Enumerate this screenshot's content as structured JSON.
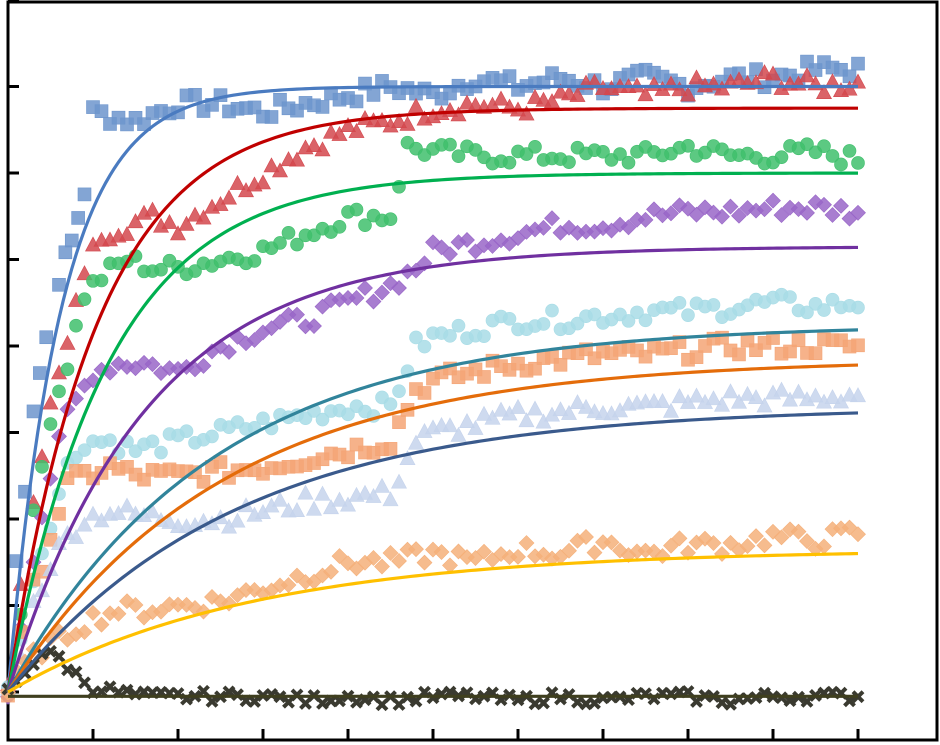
{
  "chart_data": {
    "type": "scatter",
    "title": "",
    "xlabel": "",
    "ylabel": "",
    "xlim": [
      0,
      11
    ],
    "ylim": [
      0,
      8
    ],
    "x_tick_step": 1,
    "y_tick_step": 1,
    "grid": false,
    "legend": "none",
    "series": [
      {
        "marker": "square",
        "color": "#6d95cc",
        "fit_color": "#4a7bc0",
        "plateau": 7.0,
        "k": 1.6,
        "fit_end": 7.0,
        "data_x": [
          0.0,
          0.1,
          0.2,
          0.3,
          0.45,
          0.6,
          0.75,
          0.9,
          1.0,
          1.5,
          2.0,
          2.5,
          3.0,
          3.5,
          4.0,
          4.5,
          5.0,
          5.5,
          6.0,
          6.5,
          7.0,
          7.5,
          8.0,
          8.5,
          9.0,
          9.5,
          10.0
        ],
        "data_y": [
          0.0,
          1.5,
          2.4,
          3.3,
          4.1,
          4.8,
          5.2,
          5.8,
          6.7,
          6.6,
          6.8,
          6.8,
          6.7,
          6.8,
          6.9,
          7.0,
          6.9,
          7.1,
          7.0,
          7.1,
          7.0,
          7.1,
          7.0,
          7.1,
          7.1,
          7.2,
          7.2
        ]
      },
      {
        "marker": "triangle",
        "color": "#d4484e",
        "fit_color": "#c00000",
        "plateau": 6.75,
        "k": 0.95,
        "fit_end": 6.75,
        "data_x": [
          0.0,
          0.15,
          0.3,
          0.5,
          0.7,
          0.9,
          1.1,
          1.4,
          1.7,
          2.0,
          2.5,
          3.0,
          3.5,
          4.0,
          4.5,
          5.0,
          5.5,
          6.0,
          6.5,
          7.0,
          7.5,
          8.0,
          8.5,
          9.0,
          9.5,
          10.0
        ],
        "data_y": [
          0.0,
          1.3,
          2.3,
          3.3,
          4.0,
          4.9,
          5.3,
          5.4,
          5.5,
          5.4,
          5.7,
          6.0,
          6.3,
          6.5,
          6.6,
          6.75,
          6.8,
          6.75,
          6.85,
          7.0,
          6.9,
          7.0,
          7.0,
          7.1,
          7.0,
          7.05
        ]
      },
      {
        "marker": "circle",
        "color": "#3fbf6c",
        "fit_color": "#00b050",
        "plateau": 6.0,
        "k": 0.85,
        "fit_end": 6.0,
        "data_x": [
          0.0,
          0.15,
          0.3,
          0.5,
          0.7,
          0.9,
          1.1,
          1.4,
          1.7,
          2.0,
          2.5,
          3.0,
          3.5,
          4.0,
          4.5,
          4.7,
          5.0,
          5.5,
          6.0,
          6.5,
          7.0,
          7.5,
          8.0,
          8.5,
          9.0,
          9.5,
          10.0
        ],
        "data_y": [
          0.0,
          1.0,
          2.0,
          3.2,
          3.8,
          4.6,
          4.8,
          5.0,
          4.9,
          4.9,
          5.0,
          5.1,
          5.3,
          5.5,
          5.5,
          6.3,
          6.25,
          6.2,
          6.2,
          6.2,
          6.2,
          6.2,
          6.3,
          6.2,
          6.2,
          6.25,
          6.15
        ]
      },
      {
        "marker": "diamond",
        "color": "#9966c8",
        "fit_color": "#7030a0",
        "plateau": 5.15,
        "k": 0.62,
        "fit_end": 5.15,
        "data_x": [
          0.0,
          0.15,
          0.3,
          0.5,
          0.7,
          1.0,
          1.3,
          1.6,
          2.0,
          2.5,
          3.0,
          3.5,
          4.0,
          4.5,
          4.8,
          5.0,
          5.5,
          6.0,
          6.5,
          7.0,
          7.5,
          8.0,
          8.5,
          9.0,
          9.5,
          10.0
        ],
        "data_y": [
          0.0,
          0.8,
          1.6,
          2.5,
          3.2,
          3.7,
          3.8,
          3.8,
          3.7,
          4.0,
          4.2,
          4.3,
          4.5,
          4.7,
          4.9,
          5.1,
          5.2,
          5.3,
          5.4,
          5.4,
          5.5,
          5.55,
          5.55,
          5.6,
          5.6,
          5.55
        ]
      },
      {
        "marker": "circle",
        "color": "#a8dce6",
        "fit_color": "#31849b",
        "plateau": 4.25,
        "k": 0.42,
        "fit_end": 4.25,
        "data_x": [
          0.0,
          0.15,
          0.3,
          0.5,
          0.7,
          0.9,
          1.2,
          1.5,
          2.0,
          2.5,
          3.0,
          3.5,
          4.0,
          4.5,
          4.8,
          5.0,
          5.5,
          6.0,
          6.5,
          7.0,
          7.5,
          8.0,
          8.5,
          9.0,
          9.5,
          10.0
        ],
        "data_y": [
          0.0,
          0.7,
          1.3,
          2.0,
          2.6,
          2.9,
          2.9,
          2.8,
          2.9,
          3.0,
          3.1,
          3.2,
          3.3,
          3.3,
          4.0,
          4.1,
          4.2,
          4.3,
          4.3,
          4.35,
          4.4,
          4.4,
          4.45,
          4.5,
          4.45,
          4.5
        ]
      },
      {
        "marker": "square",
        "color": "#f4a576",
        "fit_color": "#e46c0a",
        "plateau": 3.85,
        "k": 0.4,
        "fit_end": 3.85,
        "data_x": [
          0.0,
          0.15,
          0.3,
          0.5,
          0.7,
          0.9,
          1.2,
          1.5,
          2.0,
          2.5,
          3.0,
          3.5,
          4.0,
          4.5,
          4.8,
          5.0,
          5.5,
          6.0,
          6.5,
          7.0,
          7.5,
          8.0,
          8.5,
          9.0,
          9.5,
          10.0
        ],
        "data_y": [
          0.0,
          0.6,
          1.2,
          1.8,
          2.4,
          2.5,
          2.6,
          2.5,
          2.5,
          2.55,
          2.6,
          2.7,
          2.8,
          2.9,
          3.5,
          3.6,
          3.7,
          3.8,
          3.85,
          3.9,
          3.9,
          3.95,
          4.0,
          4.0,
          4.0,
          4.0
        ]
      },
      {
        "marker": "triangle",
        "color": "#c5d3ec",
        "fit_color": "#3a5a8c",
        "plateau": 3.3,
        "k": 0.38,
        "fit_end": 3.3,
        "data_x": [
          0.0,
          0.15,
          0.3,
          0.5,
          0.7,
          0.9,
          1.2,
          1.5,
          2.0,
          2.5,
          3.0,
          3.5,
          4.0,
          4.5,
          4.8,
          5.0,
          5.5,
          6.0,
          6.5,
          7.0,
          7.5,
          8.0,
          8.5,
          9.0,
          9.5,
          10.0
        ],
        "data_y": [
          0.0,
          0.5,
          1.0,
          1.5,
          1.8,
          2.0,
          2.1,
          2.05,
          2.0,
          2.0,
          2.1,
          2.2,
          2.25,
          2.3,
          2.9,
          3.0,
          3.1,
          3.2,
          3.25,
          3.3,
          3.3,
          3.35,
          3.4,
          3.4,
          3.4,
          3.45
        ]
      },
      {
        "marker": "diamond",
        "color": "#f5b07a",
        "fit_color": "#ffc000",
        "plateau": 1.65,
        "k": 0.35,
        "fit_end": 1.65,
        "data_x": [
          0.0,
          0.2,
          0.4,
          0.6,
          0.8,
          1.0,
          1.3,
          1.6,
          2.0,
          2.5,
          3.0,
          3.5,
          4.0,
          4.5,
          5.0,
          5.5,
          6.0,
          6.5,
          7.0,
          7.5,
          8.0,
          8.5,
          9.0,
          9.5,
          10.0
        ],
        "data_y": [
          0.0,
          0.3,
          0.5,
          0.6,
          0.75,
          0.85,
          0.95,
          0.95,
          1.0,
          1.05,
          1.2,
          1.35,
          1.5,
          1.5,
          1.6,
          1.5,
          1.65,
          1.6,
          1.75,
          1.6,
          1.7,
          1.7,
          1.8,
          1.75,
          1.85
        ]
      },
      {
        "marker": "x",
        "color": "#3a3a30",
        "fit_color": "#3f3f1f",
        "plateau": 0.0,
        "k": 1.0,
        "fit_end": -0.05,
        "data_x": [
          0.0,
          0.2,
          0.4,
          0.6,
          0.8,
          1.0,
          1.3,
          1.6,
          2.0,
          2.5,
          3.0,
          3.5,
          4.0,
          4.5,
          5.0,
          5.5,
          6.0,
          6.5,
          7.0,
          7.5,
          8.0,
          8.5,
          9.0,
          9.5,
          10.0
        ],
        "data_y": [
          0.0,
          0.25,
          0.45,
          0.4,
          0.2,
          0.05,
          0.0,
          -0.05,
          -0.05,
          -0.05,
          -0.05,
          -0.1,
          -0.05,
          -0.1,
          -0.05,
          -0.05,
          -0.1,
          -0.05,
          -0.1,
          -0.05,
          -0.05,
          -0.1,
          -0.05,
          -0.05,
          -0.05
        ]
      }
    ]
  }
}
